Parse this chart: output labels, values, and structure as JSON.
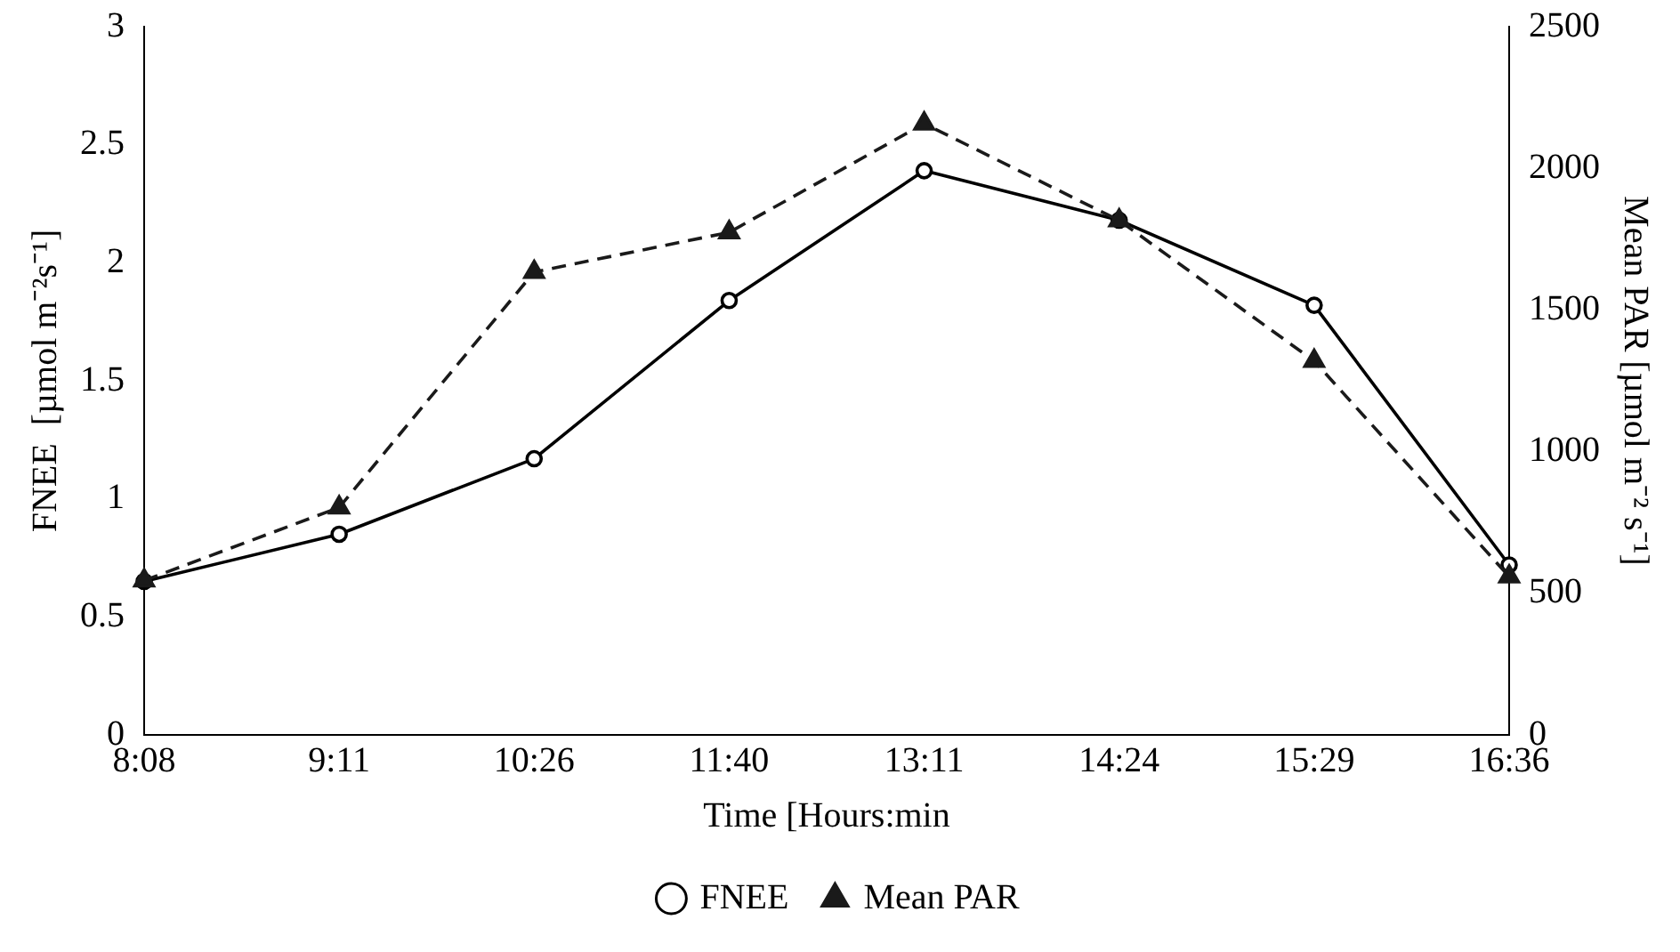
{
  "chart_data": {
    "type": "line",
    "xlabel": "Time [Hours:min",
    "ylabel": "FNEE  [µmol m⁻²s⁻¹]",
    "y2label": "Mean PAR [µmol m⁻² s⁻¹]",
    "categories": [
      "8:08",
      "9:11",
      "10:26",
      "11:40",
      "13:11",
      "14:24",
      "15:29",
      "16:36"
    ],
    "series": [
      {
        "name": "FNEE",
        "color": "#000000",
        "marker": "circle",
        "line_style": "solid",
        "values": [
          0.65,
          0.85,
          1.17,
          1.84,
          2.39,
          2.18,
          1.82,
          0.72
        ]
      },
      {
        "name": "Mean PAR",
        "color": "#1a1a1a",
        "marker": "triangle",
        "line_style": "dashed",
        "axis": "y2",
        "values": [
          545,
          803,
          1634,
          1774,
          2158,
          1816,
          1320,
          559
        ]
      }
    ],
    "ylim": [
      0,
      3
    ],
    "yticks": [
      0,
      0.5,
      1,
      1.5,
      2,
      2.5,
      3
    ],
    "y2lim": [
      0,
      2500
    ],
    "y2ticks": [
      0,
      500,
      1000,
      1500,
      2000,
      2500
    ],
    "grid": false,
    "legend": "bottom"
  }
}
